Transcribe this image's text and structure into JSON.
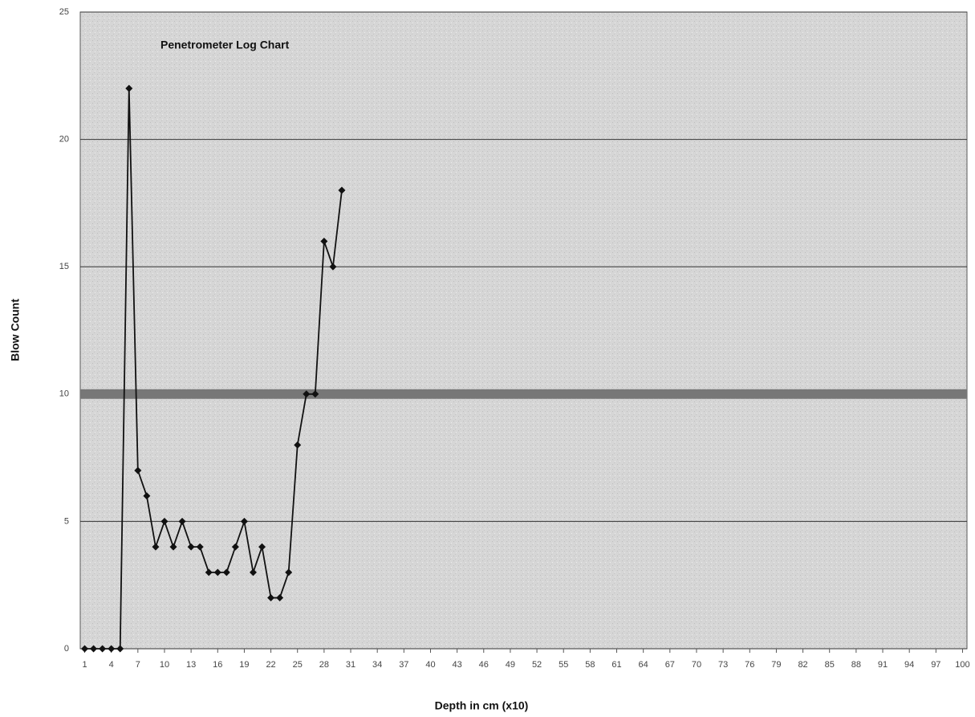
{
  "chart_data": {
    "type": "line",
    "title": "Penetrometer Log Chart",
    "x_label": "Depth in cm (x10)",
    "y_label": "Blow Count",
    "x": [
      1,
      2,
      3,
      4,
      5,
      6,
      7,
      8,
      9,
      10,
      11,
      12,
      13,
      14,
      15,
      16,
      17,
      18,
      19,
      20,
      21,
      22,
      23,
      24,
      25,
      26,
      27,
      28,
      29,
      30
    ],
    "series": [
      {
        "name": "Blow Count",
        "color": "#111111",
        "values": [
          0,
          0,
          0,
          0,
          0,
          22,
          7,
          6,
          4,
          5,
          4,
          5,
          4,
          4,
          3,
          3,
          3,
          4,
          5,
          3,
          4,
          2,
          2,
          3,
          8,
          10,
          10,
          16,
          15,
          18
        ]
      }
    ],
    "xlim": [
      0.5,
      100.5
    ],
    "xticks": [
      1,
      4,
      7,
      10,
      13,
      16,
      19,
      22,
      25,
      28,
      31,
      34,
      37,
      40,
      43,
      46,
      49,
      52,
      55,
      58,
      61,
      64,
      67,
      70,
      73,
      76,
      79,
      82,
      85,
      88,
      91,
      94,
      97,
      100
    ],
    "ylim": [
      0,
      25
    ],
    "yticks": [
      0,
      5,
      10,
      15,
      20,
      25
    ],
    "reference_line": 10,
    "grid": true
  }
}
